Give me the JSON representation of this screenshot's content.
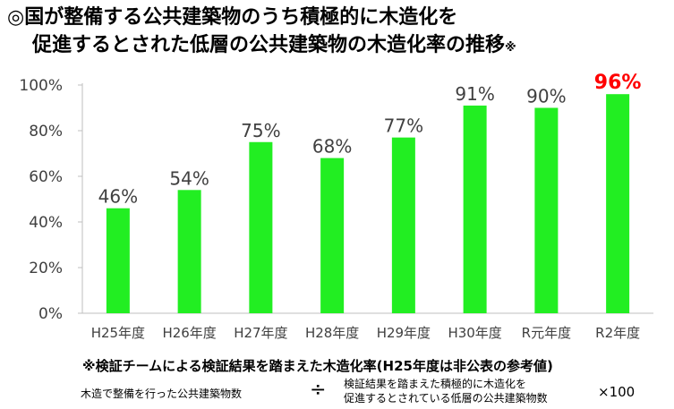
{
  "title": {
    "line1": "◎国が整備する公共建築物のうち積極的に木造化を",
    "line2": "促進するとされた低層の公共建築物の木造化率の推移",
    "suffix": "※"
  },
  "chart_data": {
    "type": "bar",
    "categories": [
      "H25年度",
      "H26年度",
      "H27年度",
      "H28年度",
      "H29年度",
      "H30年度",
      "R元年度",
      "R2年度"
    ],
    "values": [
      46,
      54,
      75,
      68,
      77,
      91,
      90,
      96
    ],
    "value_labels": [
      "46%",
      "54%",
      "75%",
      "68%",
      "77%",
      "91%",
      "90%",
      "96%"
    ],
    "yticks": [
      "0%",
      "20%",
      "40%",
      "60%",
      "80%",
      "100%"
    ],
    "ylim": [
      0,
      100
    ],
    "bar_color": "#22ee22",
    "highlight_index": 7,
    "highlight_label_color": "#ff0000",
    "label_color": "#404040"
  },
  "note": "※検証チームによる検証結果を踏まえた木造化率(H25年度は非公表の参考値)",
  "formula": {
    "numerator": "木造で整備を行った公共建築物数",
    "divide": "÷",
    "denominator_line1": "検証結果を踏まえた積極的に木造化を",
    "denominator_line2": "促進するとされている低層の公共建築物数",
    "multiply": "×100"
  }
}
